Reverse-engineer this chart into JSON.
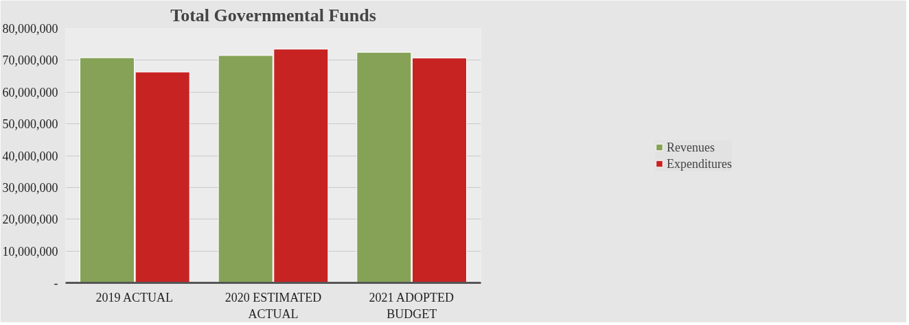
{
  "chart_data": {
    "type": "bar",
    "title": "Total Governmental Funds",
    "categories": [
      "2019 ACTUAL",
      "2020 ESTIMATED ACTUAL",
      "2021 ADOPTED BUDGET"
    ],
    "series": [
      {
        "name": "Revenues",
        "color": "#86a257",
        "values": [
          70800000,
          71500000,
          72500000
        ]
      },
      {
        "name": "Expenditures",
        "color": "#c72323",
        "values": [
          66300000,
          73500000,
          70700000
        ]
      }
    ],
    "ylim": [
      0,
      80000000
    ],
    "yticks": [
      {
        "value": 0,
        "label": "-"
      },
      {
        "value": 10000000,
        "label": "10,000,000"
      },
      {
        "value": 20000000,
        "label": "20,000,000"
      },
      {
        "value": 30000000,
        "label": "30,000,000"
      },
      {
        "value": 40000000,
        "label": "40,000,000"
      },
      {
        "value": 50000000,
        "label": "50,000,000"
      },
      {
        "value": 60000000,
        "label": "60,000,000"
      },
      {
        "value": 70000000,
        "label": "70,000,000"
      },
      {
        "value": 80000000,
        "label": "80,000,000"
      }
    ],
    "grid": "y",
    "legend": "right"
  }
}
